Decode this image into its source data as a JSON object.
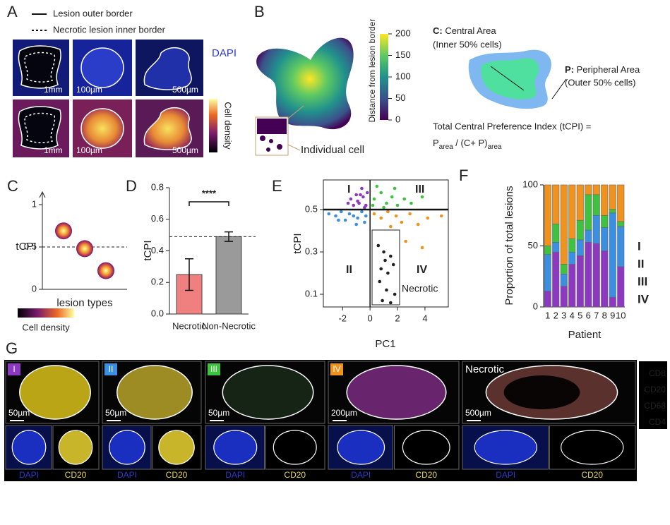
{
  "panel_a": {
    "letter": "A",
    "legend": [
      "Lesion outer border",
      "Necrotic lesion inner border"
    ],
    "stain": "DAPI",
    "colorbar_label": "Cell density",
    "scale_bars": [
      "1mm",
      "100µm",
      "500µm",
      "1mm",
      "100µm",
      "500µm"
    ]
  },
  "panel_b": {
    "letter": "B",
    "colorbar_label": "Distance from lesion border",
    "colorbar_ticks": [
      0,
      50,
      100,
      150,
      200
    ],
    "callout": "Individual cell",
    "central_key": "C:",
    "central_name": " Central Area",
    "central_note": "(Inner 50% cells)",
    "peripheral_key": "P:",
    "peripheral_name": " Peripheral Area",
    "peripheral_note": "(Outer 50% cells)",
    "formula_line1": "Total Central Preference Index (tCPI) =",
    "formula_p": "P",
    "formula_sub1": "area",
    "formula_mid": " / (C+ P)",
    "formula_sub2": "area"
  },
  "panel_c": {
    "letter": "C",
    "colorbar_label": "Cell density"
  },
  "panel_d": {
    "letter": "D"
  },
  "panel_e": {
    "letter": "E"
  },
  "panel_f": {
    "letter": "F"
  },
  "panel_g": {
    "letter": "G",
    "panels": [
      {
        "label": "I",
        "label_color": "#8c38c0",
        "scale": "50µm",
        "bottom_labels": [
          "DAPI",
          "CD20"
        ]
      },
      {
        "label": "II",
        "label_color": "#3b8fe0",
        "scale": "50µm",
        "bottom_labels": [
          "DAPI",
          "CD20"
        ]
      },
      {
        "label": "III",
        "label_color": "#3fc23f",
        "scale": "50µm",
        "bottom_labels": [
          "DAPI",
          "CD20"
        ]
      },
      {
        "label": "IV",
        "label_color": "#f0921e",
        "scale": "200µm",
        "bottom_labels": [
          "DAPI",
          "CD20"
        ]
      },
      {
        "label": "Necrotic",
        "scale": "500µm",
        "bottom_labels": [
          "DAPI",
          "CD20"
        ]
      }
    ],
    "channels": [
      {
        "name": "CD8",
        "color": "#3fcc3f"
      },
      {
        "name": "CD20",
        "color": "#e6d84a"
      },
      {
        "name": "CD68",
        "color": "#d040d0"
      },
      {
        "name": "CD4",
        "color": "#e03030"
      }
    ]
  },
  "chart_data": [
    {
      "type": "scatter",
      "y_label": "tCPI",
      "x_label": "lesion types",
      "x": [
        1,
        2,
        3
      ],
      "values": [
        0.69,
        0.48,
        0.22
      ],
      "xlim": [
        0,
        4
      ],
      "ylim": [
        0,
        1.1
      ],
      "yticks": [
        0,
        0.5,
        1
      ],
      "reference_line": 0.5
    },
    {
      "type": "bar",
      "y_label": "tCPI",
      "categories": [
        "Necrotic",
        "Non-Necrotic"
      ],
      "values": [
        0.25,
        0.49
      ],
      "errors": [
        0.1,
        0.03
      ],
      "colors": [
        "#f08080",
        "#9a9a9a"
      ],
      "ylim": [
        0,
        0.8
      ],
      "yticks": [
        {
          "value": 0,
          "label": "0.0"
        },
        {
          "value": 0.2,
          "label": "0.2"
        },
        {
          "value": 0.4,
          "label": "0.4"
        },
        {
          "value": 0.6,
          "label": "0.6"
        },
        {
          "value": 0.8,
          "label": "0.8"
        }
      ],
      "significance": "****",
      "reference_line": 0.49
    },
    {
      "type": "scatter",
      "x_label": "PC1",
      "y_label": "tCPI",
      "xlim": [
        -3.4,
        5.7
      ],
      "ylim": [
        0.04,
        0.64
      ],
      "xticks": [
        -2,
        0,
        2,
        4
      ],
      "yticks": [
        0.1,
        0.3,
        0.5
      ],
      "threshold_x": 0,
      "threshold_y": 0.5,
      "series": [
        {
          "name": "I",
          "color": "#8c38c0",
          "x": [
            -1.4,
            -1.0,
            -0.8,
            -0.5,
            -0.3,
            -1.2,
            -0.6,
            -0.2,
            -0.9,
            -0.4,
            -1.6,
            -0.7
          ],
          "values": [
            0.55,
            0.57,
            0.53,
            0.56,
            0.52,
            0.52,
            0.6,
            0.58,
            0.54,
            0.51,
            0.53,
            0.57
          ]
        },
        {
          "name": "II",
          "color": "#3b8fe0",
          "x": [
            -3.0,
            -2.5,
            -2.1,
            -1.8,
            -1.5,
            -1.2,
            -0.9,
            -0.6,
            -0.3,
            -1.0,
            -0.4,
            -2.3
          ],
          "values": [
            0.48,
            0.47,
            0.49,
            0.45,
            0.48,
            0.47,
            0.46,
            0.49,
            0.47,
            0.43,
            0.44,
            0.45
          ]
        },
        {
          "name": "III",
          "color": "#3fc23f",
          "x": [
            0.3,
            0.8,
            1.2,
            1.6,
            2.0,
            2.5,
            3.0,
            0.5,
            1.0,
            3.8,
            0.2,
            1.8
          ],
          "values": [
            0.55,
            0.58,
            0.53,
            0.56,
            0.52,
            0.55,
            0.53,
            0.61,
            0.51,
            0.56,
            0.52,
            0.6
          ]
        },
        {
          "name": "IV",
          "color": "#f0921e",
          "x": [
            0.3,
            0.8,
            1.3,
            1.9,
            2.3,
            2.9,
            3.5,
            4.2,
            5.2,
            2.6,
            3.8,
            1.5
          ],
          "values": [
            0.48,
            0.46,
            0.49,
            0.47,
            0.44,
            0.48,
            0.43,
            0.46,
            0.47,
            0.35,
            0.32,
            0.42
          ]
        },
        {
          "name": "Necrotic",
          "color": "#222222",
          "x": [
            0.6,
            1.0,
            1.5,
            0.8,
            1.3,
            1.7,
            0.7,
            1.2,
            1.8,
            0.9,
            1.5,
            1.1
          ],
          "values": [
            0.33,
            0.3,
            0.28,
            0.22,
            0.2,
            0.24,
            0.16,
            0.12,
            0.1,
            0.07,
            0.06,
            0.26
          ]
        }
      ]
    },
    {
      "type": "stacked_bar",
      "y_label": "Proportion of total lesions",
      "x_label": "Patient",
      "categories": [
        "1",
        "2",
        "3",
        "4",
        "5",
        "6",
        "7",
        "8",
        "9",
        "10"
      ],
      "ylim": [
        0,
        100
      ],
      "yticks": [
        0,
        50,
        100
      ],
      "series": [
        {
          "name": "I",
          "color": "#8c38c0",
          "values": [
            13,
            45,
            17,
            35,
            42,
            53,
            52,
            46,
            8,
            33
          ]
        },
        {
          "name": "II",
          "color": "#3b8fe0",
          "values": [
            30,
            8,
            10,
            10,
            13,
            10,
            23,
            19,
            69,
            33
          ]
        },
        {
          "name": "III",
          "color": "#3fc23f",
          "values": [
            7,
            15,
            8,
            11,
            16,
            29,
            17,
            10,
            3,
            4
          ]
        },
        {
          "name": "IV",
          "color": "#f0921e",
          "values": [
            50,
            32,
            65,
            44,
            29,
            8,
            8,
            25,
            20,
            30
          ]
        }
      ]
    }
  ]
}
